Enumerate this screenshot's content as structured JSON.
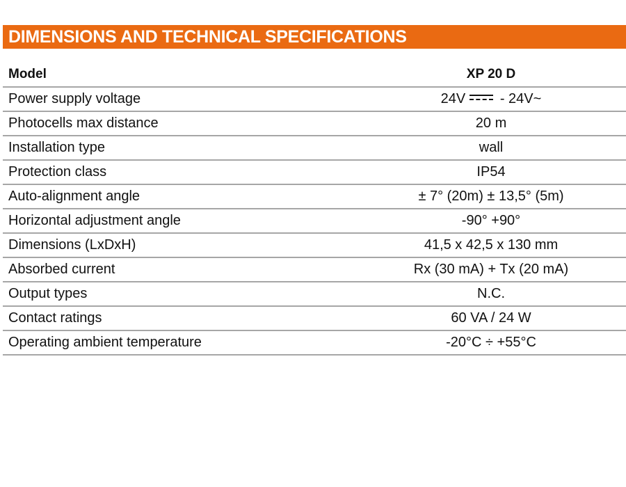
{
  "title": "DIMENSIONS AND TECHNICAL SPECIFICATIONS",
  "accent_color": "#ea6a12",
  "table": {
    "header": {
      "label": "Model",
      "value": "XP 20 D"
    },
    "rows": [
      {
        "label": "Power supply voltage",
        "value_prefix": "24V",
        "value_suffix": " - 24V~"
      },
      {
        "label": "Photocells max distance",
        "value": "20 m"
      },
      {
        "label": "Installation type",
        "value": "wall"
      },
      {
        "label": "Protection class",
        "value": "IP54"
      },
      {
        "label": "Auto-alignment angle",
        "value": "± 7° (20m) ± 13,5° (5m)"
      },
      {
        "label": "Horizontal adjustment angle",
        "value": "-90° +90°"
      },
      {
        "label": "Dimensions (LxDxH)",
        "value": "41,5 x 42,5 x 130 mm"
      },
      {
        "label": "Absorbed current",
        "value": "Rx (30 mA) + Tx (20 mA)"
      },
      {
        "label": "Output types",
        "value": "N.C."
      },
      {
        "label": "Contact ratings",
        "value": "60 VA / 24 W"
      },
      {
        "label": "Operating ambient temperature",
        "value": "-20°C ÷ +55°C"
      }
    ]
  }
}
